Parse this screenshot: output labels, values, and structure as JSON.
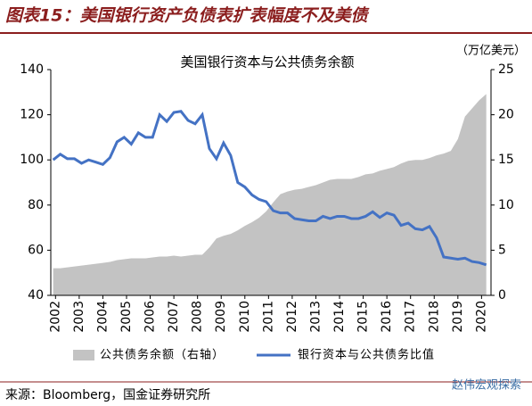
{
  "header_title": "图表15：美国银行资产负债表扩表幅度不及美债",
  "source": "来源：Bloomberg，国金证券研究所",
  "watermark": "赵伟宏观探索",
  "chart_data": {
    "type": "line",
    "title": "美国银行资本与公共债务余额",
    "y2_unit": "（万亿美元）",
    "x": [
      2001.9,
      2002.2,
      2002.5,
      2002.8,
      2003.1,
      2003.4,
      2003.7,
      2004.0,
      2004.3,
      2004.6,
      2004.9,
      2005.2,
      2005.5,
      2005.8,
      2006.1,
      2006.4,
      2006.7,
      2007.0,
      2007.3,
      2007.6,
      2007.9,
      2008.2,
      2008.5,
      2008.8,
      2009.1,
      2009.4,
      2009.7,
      2010.0,
      2010.3,
      2010.6,
      2010.9,
      2011.2,
      2011.5,
      2011.8,
      2012.1,
      2012.4,
      2012.7,
      2013.0,
      2013.3,
      2013.6,
      2013.9,
      2014.2,
      2014.5,
      2014.8,
      2015.1,
      2015.4,
      2015.7,
      2016.0,
      2016.3,
      2016.6,
      2016.9,
      2017.2,
      2017.5,
      2017.8,
      2018.1,
      2018.4,
      2018.7,
      2019.0,
      2019.3,
      2019.6,
      2019.9,
      2020.2
    ],
    "series": [
      {
        "name": "公共债务余额（右轴）",
        "type": "area",
        "axis": "y2",
        "color": "#c3c3c3",
        "values": [
          3.0,
          3.0,
          3.1,
          3.2,
          3.3,
          3.4,
          3.5,
          3.6,
          3.7,
          3.9,
          4.0,
          4.1,
          4.1,
          4.1,
          4.2,
          4.3,
          4.3,
          4.4,
          4.3,
          4.4,
          4.5,
          4.5,
          5.3,
          6.3,
          6.6,
          6.8,
          7.2,
          7.7,
          8.1,
          8.6,
          9.3,
          10.3,
          11.2,
          11.5,
          11.7,
          11.8,
          12.0,
          12.2,
          12.5,
          12.8,
          12.9,
          12.9,
          12.9,
          13.1,
          13.4,
          13.5,
          13.8,
          14.0,
          14.2,
          14.6,
          14.9,
          15.0,
          15.0,
          15.2,
          15.5,
          15.7,
          16.0,
          17.3,
          19.8,
          20.7,
          21.6,
          22.3
        ]
      },
      {
        "name": "银行资本与公共债务比值",
        "type": "line",
        "color": "#4472c4",
        "values": [
          100,
          102.5,
          100.5,
          100.5,
          98.5,
          100,
          99,
          98,
          101,
          108,
          110,
          107,
          112,
          110,
          110,
          120,
          117,
          121,
          121.5,
          117.5,
          116,
          120,
          105,
          100.5,
          107.5,
          102,
          90,
          88,
          84.5,
          82.5,
          81.5,
          77.5,
          76.5,
          76.5,
          74,
          73.5,
          73,
          73,
          75,
          74,
          75,
          75,
          74,
          74,
          75,
          77,
          74.5,
          76.5,
          75.5,
          71,
          72,
          69.5,
          69,
          70.5,
          65.5,
          57,
          56.5,
          56,
          56.5,
          55,
          54.5,
          53.5
        ]
      }
    ],
    "xlim": [
      2001.8,
      2020.4
    ],
    "xticks": [
      2002,
      2003,
      2004,
      2005,
      2006,
      2007,
      2008,
      2009,
      2010,
      2011,
      2012,
      2013,
      2014,
      2015,
      2016,
      2017,
      2018,
      2019,
      2020
    ],
    "ylim": [
      40,
      140
    ],
    "yticks": [
      40,
      60,
      80,
      100,
      120,
      140
    ],
    "y2lim": [
      0,
      25
    ],
    "y2ticks": [
      0,
      5,
      10,
      15,
      20,
      25
    ]
  }
}
